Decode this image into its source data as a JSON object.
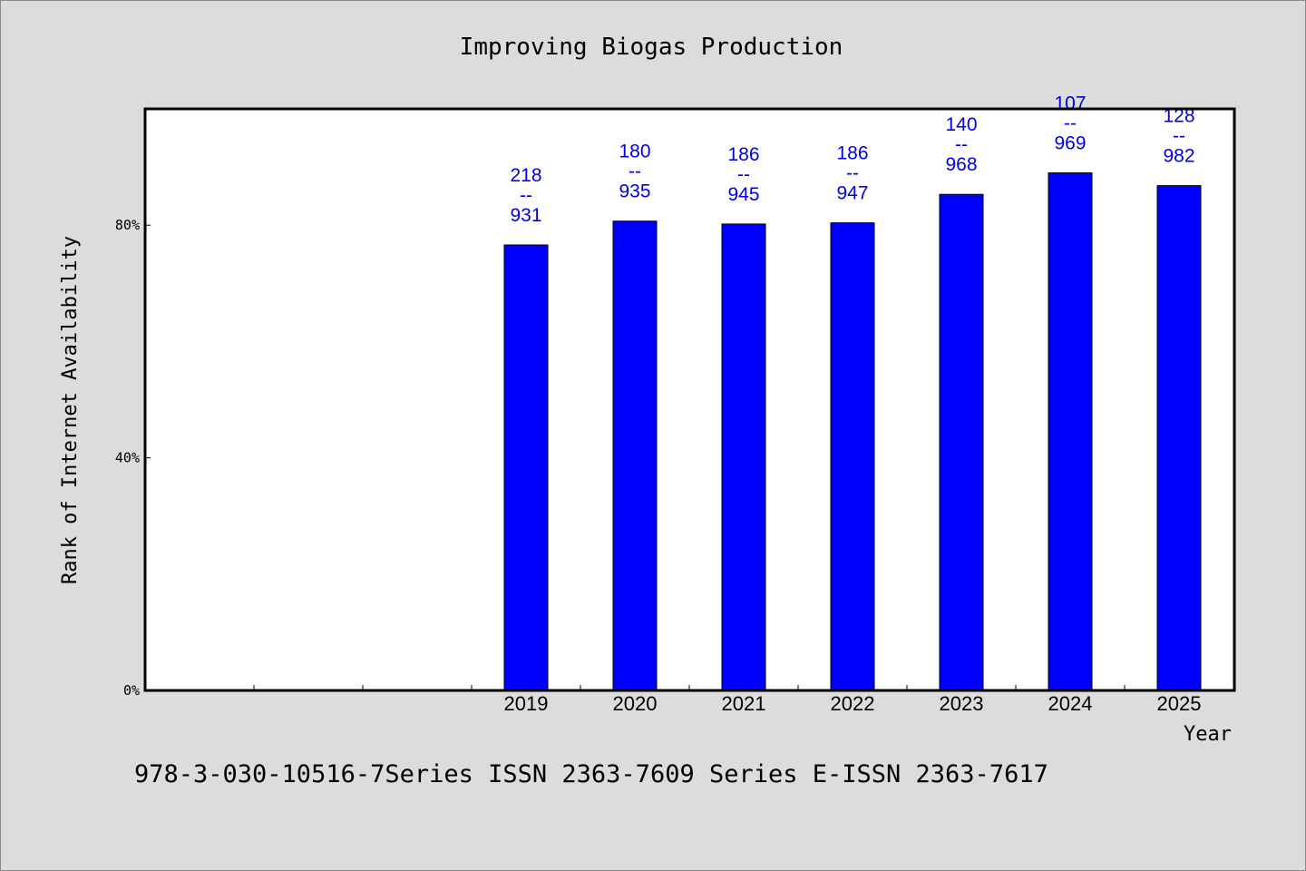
{
  "colors": {
    "background": "#dcdcdc",
    "plot_background": "#ffffff",
    "bar": "#0000ff",
    "data_label": "#0000e0"
  },
  "footer": "978-3-030-10516-7Series ISSN 2363-7609 Series E-ISSN 2363-7617",
  "chart_data": {
    "type": "bar",
    "title": "Improving Biogas Production",
    "xlabel": "Year",
    "ylabel": "Rank of Internet Availability",
    "ylim": [
      0,
      100
    ],
    "yticks": [
      0,
      40,
      80
    ],
    "ytick_labels": [
      "0%",
      "40%",
      "80%"
    ],
    "grid": false,
    "legend": "none",
    "categories": [
      "",
      "",
      "",
      "2019",
      "2020",
      "2021",
      "2022",
      "2023",
      "2024",
      "2025"
    ],
    "values": [
      null,
      null,
      null,
      76.6,
      80.7,
      80.2,
      80.4,
      85.3,
      89.0,
      86.8
    ],
    "data_labels": [
      null,
      null,
      null,
      [
        "218",
        "--",
        "931"
      ],
      [
        "180",
        "--",
        "935"
      ],
      [
        "186",
        "--",
        "945"
      ],
      [
        "186",
        "--",
        "947"
      ],
      [
        "140",
        "--",
        "968"
      ],
      [
        "107",
        "--",
        "969"
      ],
      [
        "128",
        "--",
        "982"
      ]
    ]
  }
}
